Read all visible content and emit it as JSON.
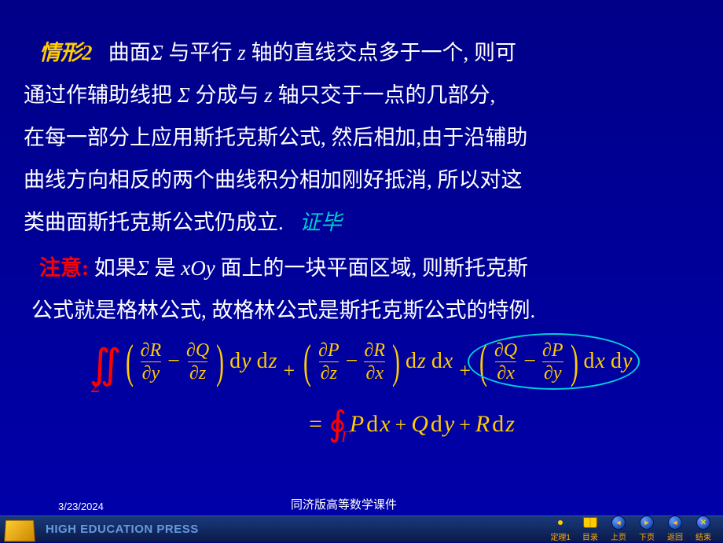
{
  "colors": {
    "background_top": "#000088",
    "background_bottom": "#0000aa",
    "text_main": "#ffffff",
    "case_label": "#ffcc00",
    "note_label": "#ff0000",
    "done": "#00cccc",
    "formula": "#ffcc00",
    "integral": "#ff0000",
    "ellipse": "#00ccdd",
    "nav_label": "#ffaa00",
    "press": "#6699dd"
  },
  "typography": {
    "body_fontsize": 27,
    "formula_fontsize": 28,
    "nav_label_fontsize": 10
  },
  "text": {
    "case_label": "情形2",
    "para1_a": "曲面",
    "sigma": "Σ",
    "para1_b": "与平行",
    "z": " z ",
    "para1_c": "轴的直线交点多于一个, 则可",
    "para2_a": "通过作辅助线把 ",
    "para2_b": "分成与",
    "para2_c": "轴只交于一点的几部分,",
    "para3": "在每一部分上应用斯托克斯公式, 然后相加,",
    "para3_b": "由于沿辅助",
    "para4": "曲线方向相反的两个曲线积分相加刚好抵消,",
    "para4_b": " 所以对这",
    "para5": "类曲面斯托克斯公式仍成立.",
    "done": "证毕",
    "note_label": "注意:",
    "note1_a": " 如果",
    "note1_b": " 是 ",
    "xoy": "xOy",
    "note1_c": " 面上的一块平面区域,",
    "note1_d": " 则斯托克斯",
    "note2": "公式就是格林公式, 故格林公式是斯托克斯公式的特例."
  },
  "formula": {
    "terms": [
      {
        "top1": "∂R",
        "bot1": "∂y",
        "top2": "∂Q",
        "bot2": "∂z",
        "d1": "y",
        "d2": "z"
      },
      {
        "top1": "∂P",
        "bot1": "∂z",
        "top2": "∂R",
        "bot2": "∂x",
        "d1": "z",
        "d2": "x"
      },
      {
        "top1": "∂Q",
        "bot1": "∂x",
        "top2": "∂P",
        "bot2": "∂y",
        "d1": "x",
        "d2": "y"
      }
    ],
    "surface_sub": "Σ",
    "line_sub": "Γ",
    "rhs": [
      {
        "coef": "P",
        "var": "x"
      },
      {
        "coef": "Q",
        "var": "y"
      },
      {
        "coef": "R",
        "var": "z"
      }
    ],
    "ellipse_highlight_index": 2
  },
  "footer": {
    "date": "3/23/2024",
    "subtitle": "同济版高等数学课件",
    "press": "HIGH EDUCATION PRESS",
    "nav": [
      {
        "key": "theorem1",
        "label": "定理1"
      },
      {
        "key": "toc",
        "label": "目录"
      },
      {
        "key": "prev",
        "label": "上页"
      },
      {
        "key": "next",
        "label": "下页"
      },
      {
        "key": "back",
        "label": "返回"
      },
      {
        "key": "end",
        "label": "结束"
      }
    ]
  }
}
